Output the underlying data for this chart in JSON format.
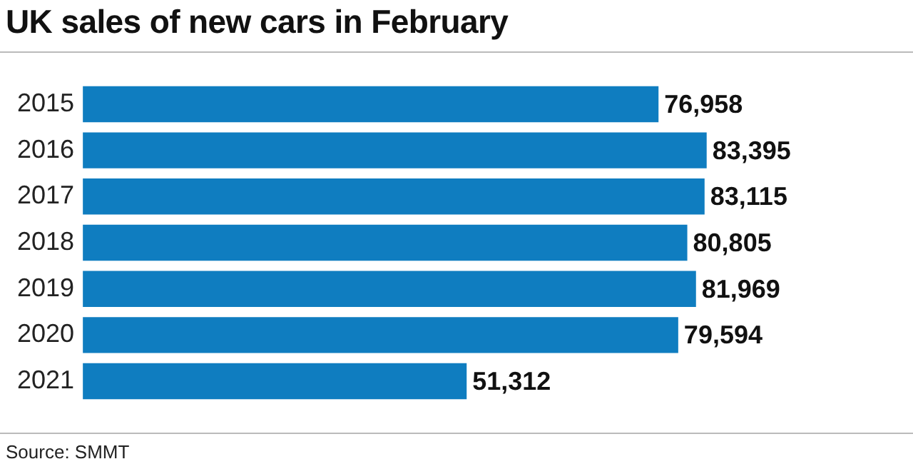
{
  "chart_data": {
    "type": "bar",
    "orientation": "horizontal",
    "title": "UK sales of new cars in February",
    "categories": [
      "2015",
      "2016",
      "2017",
      "2018",
      "2019",
      "2020",
      "2021"
    ],
    "values": [
      76958,
      83395,
      83115,
      80805,
      81969,
      79594,
      51312
    ],
    "value_labels": [
      "76,958",
      "83,395",
      "83,115",
      "80,805",
      "81,969",
      "79,594",
      "51,312"
    ],
    "color": "#0f7dc0",
    "annotations": [
      "Source: SMMT"
    ]
  }
}
